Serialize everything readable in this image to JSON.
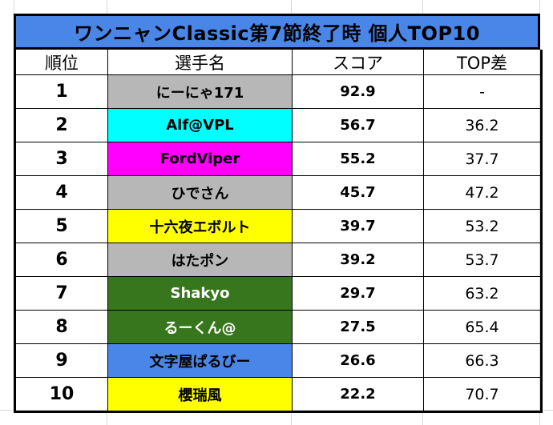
{
  "title": "ワンニャンClassic第7節終了時 個人TOP10",
  "headers": [
    "順位",
    "選手名",
    "スコア",
    "TOP差"
  ],
  "rows": [
    {
      "rank": "1",
      "name": "にーにゃ171",
      "score": "92.9",
      "diff": "-",
      "bg": "#b7b7b7",
      "fg": "#000000"
    },
    {
      "rank": "2",
      "name": "Alf@VPL",
      "score": "56.7",
      "diff": "36.2",
      "bg": "#00ffff",
      "fg": "#000000"
    },
    {
      "rank": "3",
      "name": "FordViper",
      "score": "55.2",
      "diff": "37.7",
      "bg": "#ff00ff",
      "fg": "#000000"
    },
    {
      "rank": "4",
      "name": "ひでさん",
      "score": "45.7",
      "diff": "47.2",
      "bg": "#b7b7b7",
      "fg": "#000000"
    },
    {
      "rank": "5",
      "name": "十六夜エボルト",
      "score": "39.7",
      "diff": "53.2",
      "bg": "#ffff00",
      "fg": "#000000"
    },
    {
      "rank": "6",
      "name": "はたポン",
      "score": "39.2",
      "diff": "53.7",
      "bg": "#b7b7b7",
      "fg": "#000000"
    },
    {
      "rank": "7",
      "name": "Shakyo",
      "score": "29.7",
      "diff": "63.2",
      "bg": "#38761d",
      "fg": "#ffffff"
    },
    {
      "rank": "8",
      "name": "るーくん@",
      "score": "27.5",
      "diff": "65.4",
      "bg": "#38761d",
      "fg": "#ffffff"
    },
    {
      "rank": "9",
      "name": "文字屋ぱるびー",
      "score": "26.6",
      "diff": "66.3",
      "bg": "#4a86e8",
      "fg": "#000000"
    },
    {
      "rank": "10",
      "name": "櫻瑞風",
      "score": "22.2",
      "diff": "70.7",
      "bg": "#ffff00",
      "fg": "#000000"
    }
  ]
}
